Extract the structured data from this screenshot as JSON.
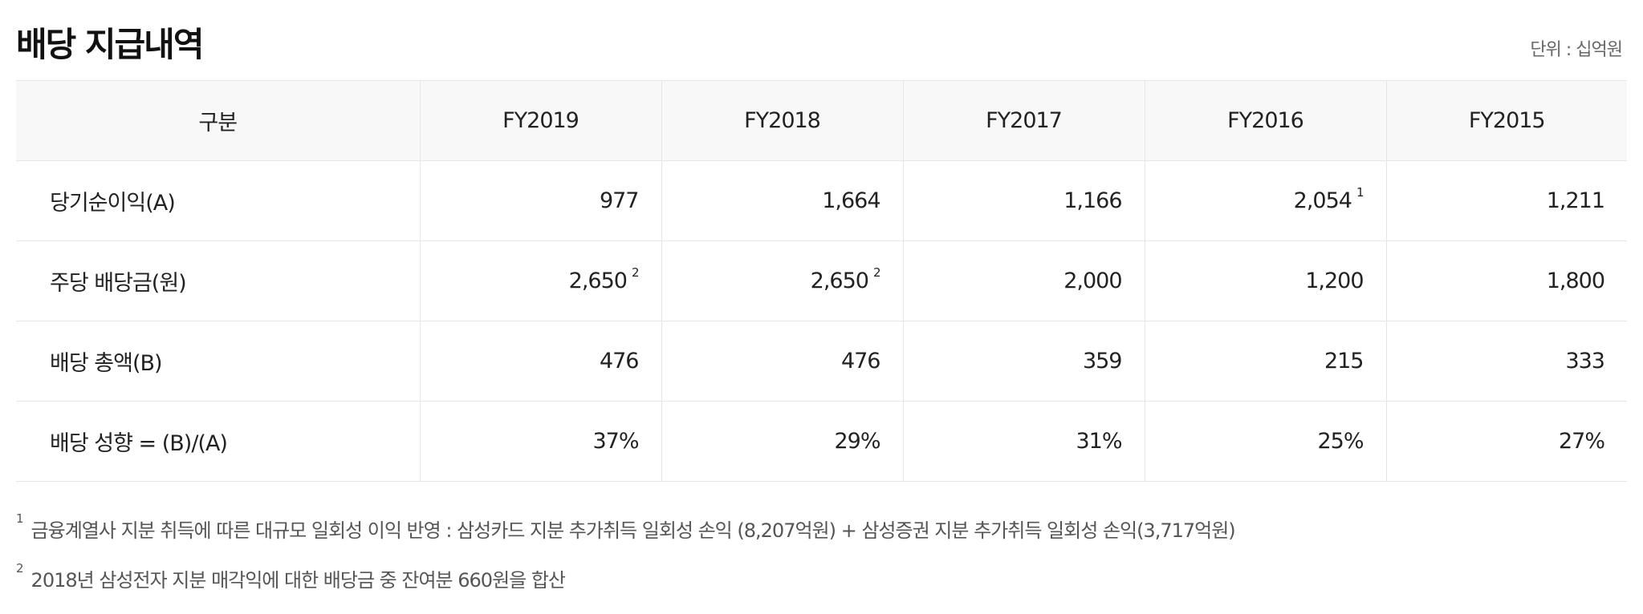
{
  "title": "배당 지급내역",
  "unit": "단위 : 십억원",
  "table": {
    "headers": [
      "구분",
      "FY2019",
      "FY2018",
      "FY2017",
      "FY2016",
      "FY2015"
    ],
    "rows": [
      {
        "label": "당기순이익(A)",
        "cells": [
          {
            "value": "977",
            "note": ""
          },
          {
            "value": "1,664",
            "note": ""
          },
          {
            "value": "1,166",
            "note": ""
          },
          {
            "value": "2,054",
            "note": "1"
          },
          {
            "value": "1,211",
            "note": ""
          }
        ]
      },
      {
        "label": "주당 배당금(원)",
        "cells": [
          {
            "value": "2,650",
            "note": "2"
          },
          {
            "value": "2,650",
            "note": "2"
          },
          {
            "value": "2,000",
            "note": ""
          },
          {
            "value": "1,200",
            "note": ""
          },
          {
            "value": "1,800",
            "note": ""
          }
        ]
      },
      {
        "label": "배당 총액(B)",
        "cells": [
          {
            "value": "476",
            "note": ""
          },
          {
            "value": "476",
            "note": ""
          },
          {
            "value": "359",
            "note": ""
          },
          {
            "value": "215",
            "note": ""
          },
          {
            "value": "333",
            "note": ""
          }
        ]
      },
      {
        "label": "배당 성향 = (B)/(A)",
        "cells": [
          {
            "value": "37%",
            "note": ""
          },
          {
            "value": "29%",
            "note": ""
          },
          {
            "value": "31%",
            "note": ""
          },
          {
            "value": "25%",
            "note": ""
          },
          {
            "value": "27%",
            "note": ""
          }
        ]
      }
    ]
  },
  "footnotes": [
    {
      "mark": "1",
      "text": "금융계열사 지분 취득에 따른 대규모 일회성 이익 반영 : 삼성카드 지분 추가취득 일회성 손익 (8,207억원) + 삼성증권 지분 추가취득 일회성 손익(3,717억원)"
    },
    {
      "mark": "2",
      "text": "2018년 삼성전자 지분 매각익에 대한 배당금 중 잔여분 660원을 합산"
    }
  ]
}
